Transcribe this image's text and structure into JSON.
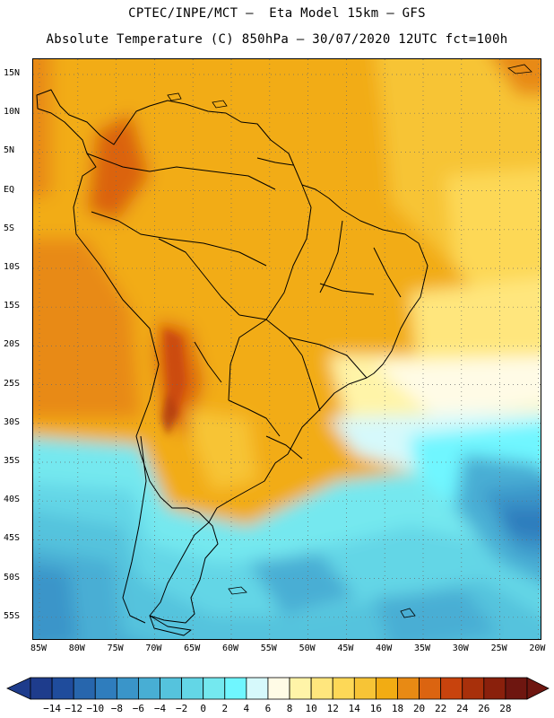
{
  "header": {
    "line1": "CPTEC/INPE/MCT –  Eta Model 15km – GFS",
    "line2": "Absolute Temperature (C) 850hPa – 30/07/2020 12UTC fct=100h"
  },
  "map": {
    "lat_ticks": [
      "15N",
      "10N",
      "5N",
      "EQ",
      "5S",
      "10S",
      "15S",
      "20S",
      "25S",
      "30S",
      "35S",
      "40S",
      "45S",
      "50S",
      "55S"
    ],
    "lon_ticks": [
      "85W",
      "80W",
      "75W",
      "70W",
      "65W",
      "60W",
      "55W",
      "50W",
      "45W",
      "40W",
      "35W",
      "30W",
      "25W",
      "20W"
    ],
    "extent": {
      "lon": [
        -86,
        -20
      ],
      "lat": [
        -58,
        16
      ]
    },
    "variable": "Absolute Temperature",
    "units": "C",
    "level": "850hPa"
  },
  "colorbar": {
    "labels": [
      "-14",
      "-12",
      "-10",
      "-8",
      "-6",
      "-4",
      "-2",
      "0",
      "2",
      "4",
      "6",
      "8",
      "10",
      "12",
      "14",
      "16",
      "18",
      "20",
      "22",
      "24",
      "26",
      "28"
    ],
    "colors": [
      "#1e3c8c",
      "#1f4c9c",
      "#2766ad",
      "#2f7dbd",
      "#3a95c9",
      "#48aed4",
      "#55c3dd",
      "#63d6e6",
      "#74e8ef",
      "#6ff6ff",
      "#d6f9fb",
      "#fffbe6",
      "#fff4a8",
      "#ffe67d",
      "#fdd857",
      "#f7c436",
      "#f2ac13",
      "#e88a14",
      "#db6410",
      "#c8430d",
      "#a8300b",
      "#8a200c",
      "#6e1610"
    ]
  }
}
